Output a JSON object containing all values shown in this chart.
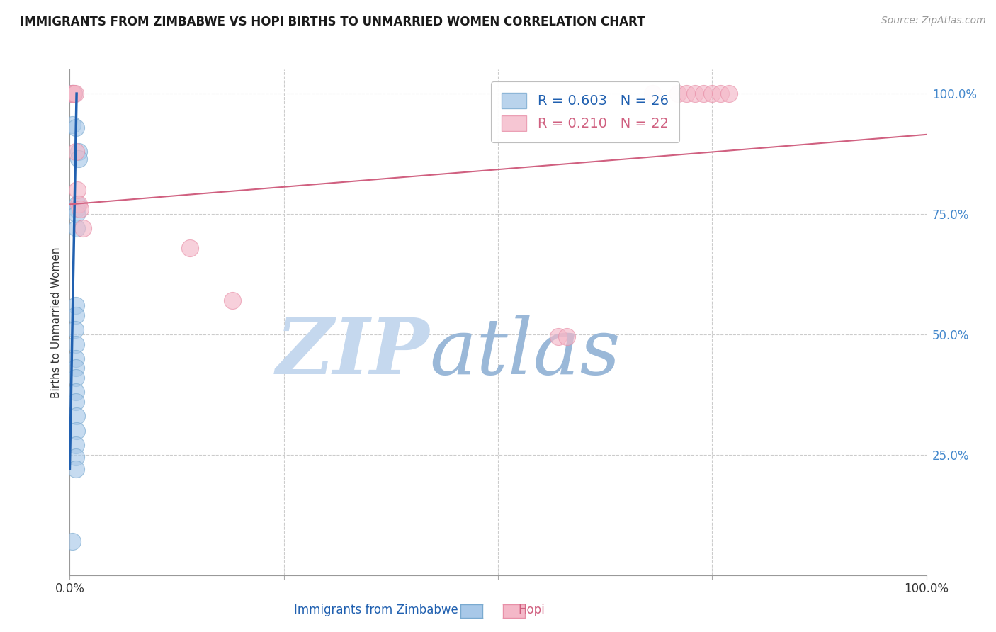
{
  "title": "IMMIGRANTS FROM ZIMBABWE VS HOPI BIRTHS TO UNMARRIED WOMEN CORRELATION CHART",
  "source": "Source: ZipAtlas.com",
  "ylabel_left": "Births to Unmarried Women",
  "legend_label1": "Immigrants from Zimbabwe",
  "legend_label2": "Hopi",
  "legend_r1": "R = 0.603",
  "legend_n1": "N = 26",
  "legend_r2": "R = 0.210",
  "legend_n2": "N = 22",
  "xlim": [
    0.0,
    1.0
  ],
  "ylim": [
    0.0,
    1.05
  ],
  "yticks_right": [
    0.25,
    0.5,
    0.75,
    1.0
  ],
  "ytick_right_labels": [
    "25.0%",
    "50.0%",
    "75.0%",
    "100.0%"
  ],
  "watermark_zip": "ZIP",
  "watermark_atlas": "atlas",
  "title_color": "#1a1a1a",
  "source_color": "#999999",
  "blue_color": "#a8c8e8",
  "pink_color": "#f4b8c8",
  "blue_edge_color": "#7aaad0",
  "pink_edge_color": "#e890a8",
  "blue_line_color": "#2060b0",
  "pink_line_color": "#d06080",
  "grid_color": "#cccccc",
  "right_axis_color": "#4488cc",
  "watermark_zip_color": "#c5d8ee",
  "watermark_atlas_color": "#9ab8d8",
  "blue_scatter": [
    [
      0.002,
      1.0
    ],
    [
      0.003,
      1.0
    ],
    [
      0.003,
      0.935
    ],
    [
      0.005,
      1.0
    ],
    [
      0.007,
      0.93
    ],
    [
      0.01,
      0.88
    ],
    [
      0.01,
      0.865
    ],
    [
      0.009,
      0.77
    ],
    [
      0.008,
      0.76
    ],
    [
      0.008,
      0.75
    ],
    [
      0.008,
      0.72
    ],
    [
      0.007,
      0.56
    ],
    [
      0.007,
      0.54
    ],
    [
      0.006,
      0.51
    ],
    [
      0.007,
      0.48
    ],
    [
      0.007,
      0.45
    ],
    [
      0.007,
      0.43
    ],
    [
      0.007,
      0.41
    ],
    [
      0.007,
      0.38
    ],
    [
      0.007,
      0.36
    ],
    [
      0.008,
      0.33
    ],
    [
      0.008,
      0.3
    ],
    [
      0.007,
      0.27
    ],
    [
      0.007,
      0.245
    ],
    [
      0.007,
      0.22
    ],
    [
      0.003,
      0.07
    ]
  ],
  "pink_scatter": [
    [
      0.003,
      1.0
    ],
    [
      0.003,
      1.0
    ],
    [
      0.004,
      1.0
    ],
    [
      0.005,
      1.0
    ],
    [
      0.006,
      1.0
    ],
    [
      0.007,
      0.88
    ],
    [
      0.009,
      0.8
    ],
    [
      0.01,
      0.77
    ],
    [
      0.012,
      0.76
    ],
    [
      0.015,
      0.72
    ],
    [
      0.14,
      0.68
    ],
    [
      0.19,
      0.57
    ],
    [
      0.57,
      0.495
    ],
    [
      0.58,
      0.495
    ],
    [
      0.68,
      1.0
    ],
    [
      0.71,
      1.0
    ],
    [
      0.72,
      1.0
    ],
    [
      0.73,
      1.0
    ],
    [
      0.74,
      1.0
    ],
    [
      0.75,
      1.0
    ],
    [
      0.76,
      1.0
    ],
    [
      0.77,
      1.0
    ]
  ],
  "blue_trendline": [
    [
      0.0,
      0.22
    ],
    [
      0.008,
      1.0
    ]
  ],
  "pink_trendline": [
    [
      0.0,
      0.77
    ],
    [
      1.0,
      0.915
    ]
  ]
}
